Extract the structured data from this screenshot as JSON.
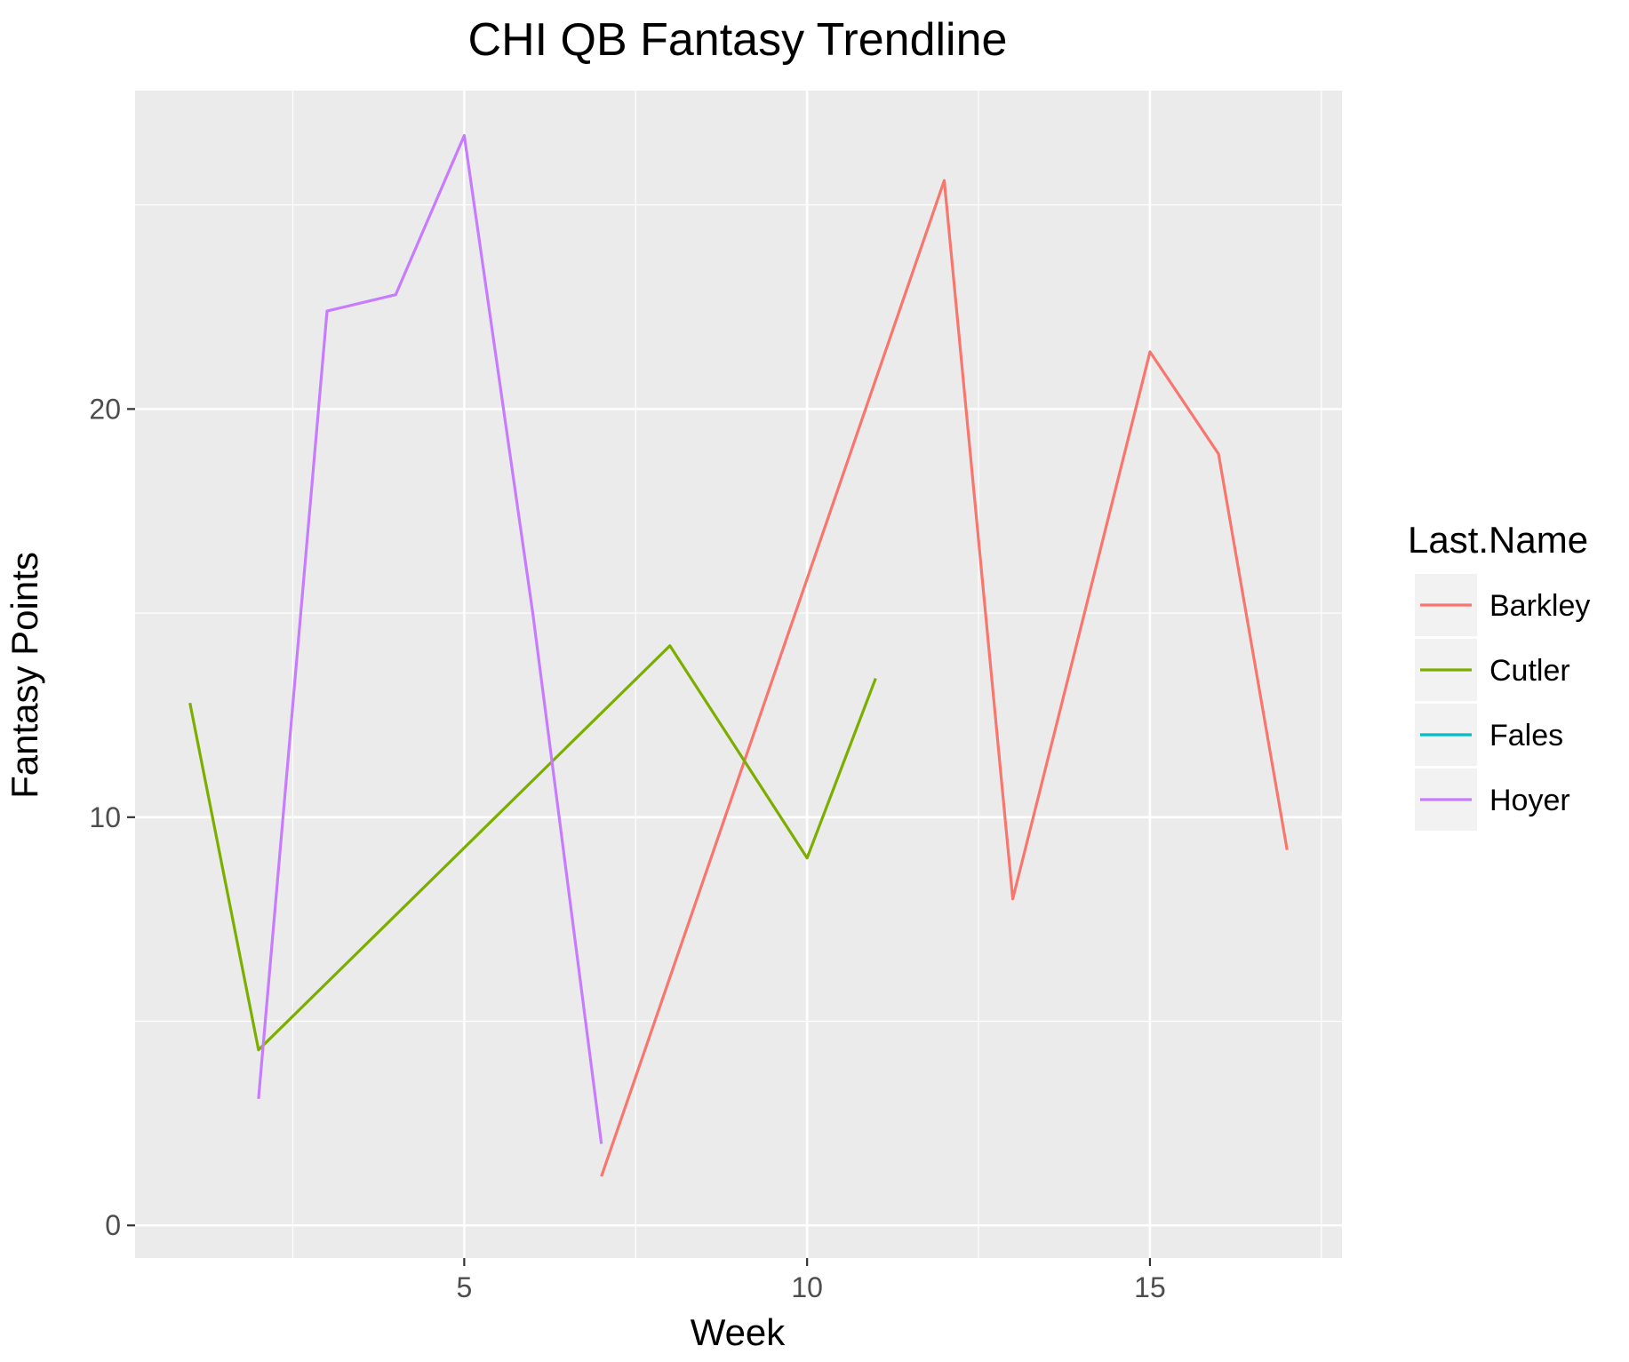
{
  "chart_data": {
    "type": "line",
    "title": "CHI QB Fantasy Trendline",
    "xlabel": "Week",
    "ylabel": "Fantasy Points",
    "xlim": [
      0.2,
      17.8
    ],
    "ylim": [
      -0.8,
      27.8
    ],
    "x_ticks": [
      5,
      10,
      15
    ],
    "x_tick_labels": [
      "5",
      "10",
      "15"
    ],
    "y_ticks": [
      0,
      10,
      20
    ],
    "y_tick_labels": [
      "0",
      "10",
      "20"
    ],
    "grid": true,
    "legend": {
      "title": "Last.Name",
      "placement": "right",
      "entries": [
        "Barkley",
        "Cutler",
        "Fales",
        "Hoyer"
      ]
    },
    "series": [
      {
        "name": "Barkley",
        "color": "#F8766D",
        "x": [
          7,
          12,
          13,
          15,
          16,
          17
        ],
        "y": [
          1.2,
          25.6,
          8.0,
          21.4,
          18.9,
          9.2
        ]
      },
      {
        "name": "Cutler",
        "color": "#7CAE00",
        "x": [
          1,
          2,
          8,
          10,
          11
        ],
        "y": [
          12.8,
          4.3,
          14.2,
          9.0,
          13.4
        ]
      },
      {
        "name": "Fales",
        "color": "#00BFC4",
        "x": [],
        "y": []
      },
      {
        "name": "Hoyer",
        "color": "#C77CFF",
        "x": [
          2,
          3,
          4,
          5,
          6,
          7
        ],
        "y": [
          3.1,
          22.4,
          22.8,
          26.7,
          15.0,
          2.0
        ]
      }
    ]
  }
}
